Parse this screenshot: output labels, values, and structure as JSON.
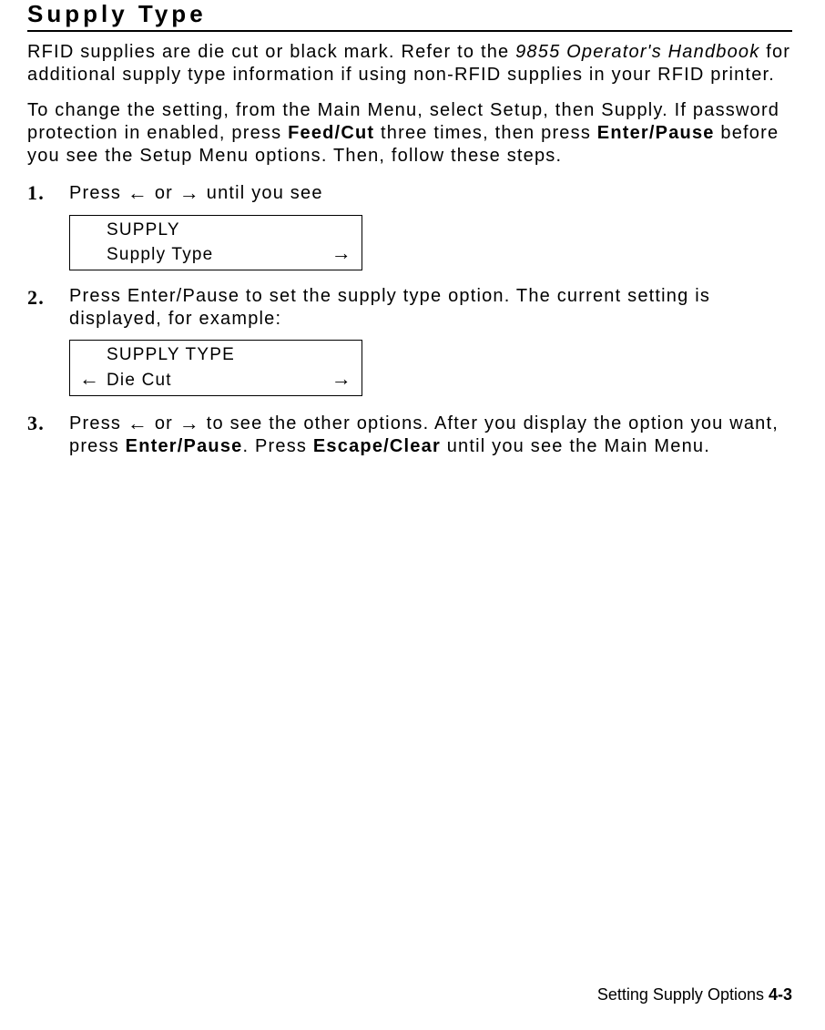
{
  "title": "Supply Type",
  "intro1_a": "RFID supplies are die cut or black mark.  Refer to the ",
  "intro1_italic": "9855 Operator's Handbook",
  "intro1_b": " for additional supply type information if using non-RFID supplies in your RFID printer.",
  "intro2_a": "To change the setting, from the Main Menu, select Setup, then Supply.  If password protection in enabled, press ",
  "intro2_bold1": "Feed/Cut",
  "intro2_b": " three times, then press ",
  "intro2_bold2": "Enter/Pause",
  "intro2_c": " before you see the Setup Menu options. Then, follow these steps.",
  "arrow_left": "←",
  "arrow_right": "→",
  "step1_a": "Press ",
  "step1_b": " or ",
  "step1_c": " until you see",
  "lcd1_line1": "SUPPLY",
  "lcd1_line2": "Supply Type",
  "step2": "Press Enter/Pause to set the supply type option.  The current setting is displayed, for example:",
  "lcd2_line1": "SUPPLY TYPE",
  "lcd2_line2": "Die Cut",
  "step3_a": "Press ",
  "step3_b": " or ",
  "step3_c": " to see the other options.  After you display the option you want, press ",
  "step3_bold1": "Enter/Pause",
  "step3_d": ".  Press ",
  "step3_bold2": "Escape/Clear",
  "step3_e": " until you see the Main Menu.",
  "footer_text": "Setting Supply Options  ",
  "footer_page": "4-3"
}
